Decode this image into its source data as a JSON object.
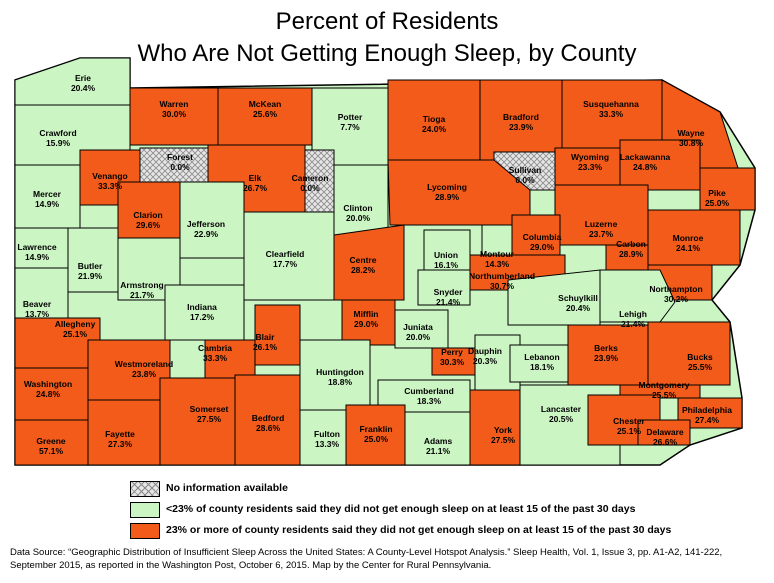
{
  "title_line1": "Percent of Residents",
  "title_line2": "Who Are Not Getting Enough Sleep, by County",
  "colors": {
    "low": "#ccf5c4",
    "high": "#f25b1a",
    "na": "#d8d8d8",
    "border": "#000000"
  },
  "counties": [
    {
      "name": "Erie",
      "value": "20.4%",
      "cat": "low"
    },
    {
      "name": "Warren",
      "value": "30.0%",
      "cat": "high"
    },
    {
      "name": "McKean",
      "value": "25.6%",
      "cat": "high"
    },
    {
      "name": "Potter",
      "value": "7.7%",
      "cat": "low"
    },
    {
      "name": "Tioga",
      "value": "24.0%",
      "cat": "high"
    },
    {
      "name": "Bradford",
      "value": "23.9%",
      "cat": "high"
    },
    {
      "name": "Susquehanna",
      "value": "33.3%",
      "cat": "high"
    },
    {
      "name": "Wayne",
      "value": "30.8%",
      "cat": "high"
    },
    {
      "name": "Crawford",
      "value": "15.9%",
      "cat": "low"
    },
    {
      "name": "Forest",
      "value": "0.0%",
      "cat": "na"
    },
    {
      "name": "Cameron",
      "value": "0.0%",
      "cat": "na"
    },
    {
      "name": "Sullivan",
      "value": "0.0%",
      "cat": "na"
    },
    {
      "name": "Wyoming",
      "value": "23.3%",
      "cat": "high"
    },
    {
      "name": "Lackawanna",
      "value": "24.8%",
      "cat": "high"
    },
    {
      "name": "Pike",
      "value": "25.0%",
      "cat": "high"
    },
    {
      "name": "Mercer",
      "value": "14.9%",
      "cat": "low"
    },
    {
      "name": "Venango",
      "value": "33.3%",
      "cat": "high"
    },
    {
      "name": "Elk",
      "value": "26.7%",
      "cat": "high"
    },
    {
      "name": "Clinton",
      "value": "20.0%",
      "cat": "low"
    },
    {
      "name": "Lycoming",
      "value": "28.9%",
      "cat": "high"
    },
    {
      "name": "Luzerne",
      "value": "23.7%",
      "cat": "high"
    },
    {
      "name": "Monroe",
      "value": "24.1%",
      "cat": "high"
    },
    {
      "name": "Clarion",
      "value": "29.6%",
      "cat": "high"
    },
    {
      "name": "Jefferson",
      "value": "22.9%",
      "cat": "low"
    },
    {
      "name": "Clearfield",
      "value": "17.7%",
      "cat": "low"
    },
    {
      "name": "Centre",
      "value": "28.2%",
      "cat": "high"
    },
    {
      "name": "Union",
      "value": "16.1%",
      "cat": "low"
    },
    {
      "name": "Montour",
      "value": "14.3%",
      "cat": "low"
    },
    {
      "name": "Columbia",
      "value": "29.0%",
      "cat": "high"
    },
    {
      "name": "Lawrence",
      "value": "14.9%",
      "cat": "low"
    },
    {
      "name": "Butler",
      "value": "21.9%",
      "cat": "low"
    },
    {
      "name": "Armstrong",
      "value": "21.7%",
      "cat": "low"
    },
    {
      "name": "Northumberland",
      "value": "30.7%",
      "cat": "high"
    },
    {
      "name": "Carbon",
      "value": "28.9%",
      "cat": "high"
    },
    {
      "name": "Northampton",
      "value": "30.2%",
      "cat": "high"
    },
    {
      "name": "Beaver",
      "value": "13.7%",
      "cat": "low"
    },
    {
      "name": "Indiana",
      "value": "17.2%",
      "cat": "low"
    },
    {
      "name": "Snyder",
      "value": "21.4%",
      "cat": "low"
    },
    {
      "name": "Schuylkill",
      "value": "20.4%",
      "cat": "low"
    },
    {
      "name": "Lehigh",
      "value": "21.4%",
      "cat": "low"
    },
    {
      "name": "Allegheny",
      "value": "25.1%",
      "cat": "high"
    },
    {
      "name": "Cambria",
      "value": "33.3%",
      "cat": "high"
    },
    {
      "name": "Blair",
      "value": "26.1%",
      "cat": "high"
    },
    {
      "name": "Mifflin",
      "value": "29.0%",
      "cat": "high"
    },
    {
      "name": "Juniata",
      "value": "20.0%",
      "cat": "low"
    },
    {
      "name": "Perry",
      "value": "30.3%",
      "cat": "high"
    },
    {
      "name": "Dauphin",
      "value": "20.3%",
      "cat": "low"
    },
    {
      "name": "Lebanon",
      "value": "18.1%",
      "cat": "low"
    },
    {
      "name": "Berks",
      "value": "23.9%",
      "cat": "high"
    },
    {
      "name": "Bucks",
      "value": "25.5%",
      "cat": "high"
    },
    {
      "name": "Washington",
      "value": "24.8%",
      "cat": "high"
    },
    {
      "name": "Westmoreland",
      "value": "23.8%",
      "cat": "high"
    },
    {
      "name": "Huntingdon",
      "value": "18.8%",
      "cat": "low"
    },
    {
      "name": "Cumberland",
      "value": "18.3%",
      "cat": "low"
    },
    {
      "name": "Montgomery",
      "value": "25.5%",
      "cat": "high"
    },
    {
      "name": "Philadelphia",
      "value": "27.4%",
      "cat": "high"
    },
    {
      "name": "Greene",
      "value": "57.1%",
      "cat": "high"
    },
    {
      "name": "Fayette",
      "value": "27.3%",
      "cat": "high"
    },
    {
      "name": "Somerset",
      "value": "27.5%",
      "cat": "high"
    },
    {
      "name": "Bedford",
      "value": "28.6%",
      "cat": "high"
    },
    {
      "name": "Fulton",
      "value": "13.3%",
      "cat": "low"
    },
    {
      "name": "Franklin",
      "value": "25.0%",
      "cat": "high"
    },
    {
      "name": "Adams",
      "value": "21.1%",
      "cat": "low"
    },
    {
      "name": "York",
      "value": "27.5%",
      "cat": "high"
    },
    {
      "name": "Lancaster",
      "value": "20.5%",
      "cat": "low"
    },
    {
      "name": "Chester",
      "value": "25.1%",
      "cat": "high"
    },
    {
      "name": "Delaware",
      "value": "26.6%",
      "cat": "high"
    }
  ],
  "legend": {
    "na": "No information available",
    "low": "<23% of county residents said they did not get enough sleep on at least 15 of the past 30 days",
    "high": "23% or more of county residents said they did not get enough sleep on at least 15 of the past 30 days"
  },
  "source": "Data Source: “Geographic Distribution of Insufficient Sleep Across the United States: A County-Level Hotspot Analysis.” Sleep Health, Vol. 1, Issue 3, pp. A1-A2, 141-222, September 2015, as reported in the Washington Post, October 6, 2015. Map by the Center for Rural Pennsylvania."
}
